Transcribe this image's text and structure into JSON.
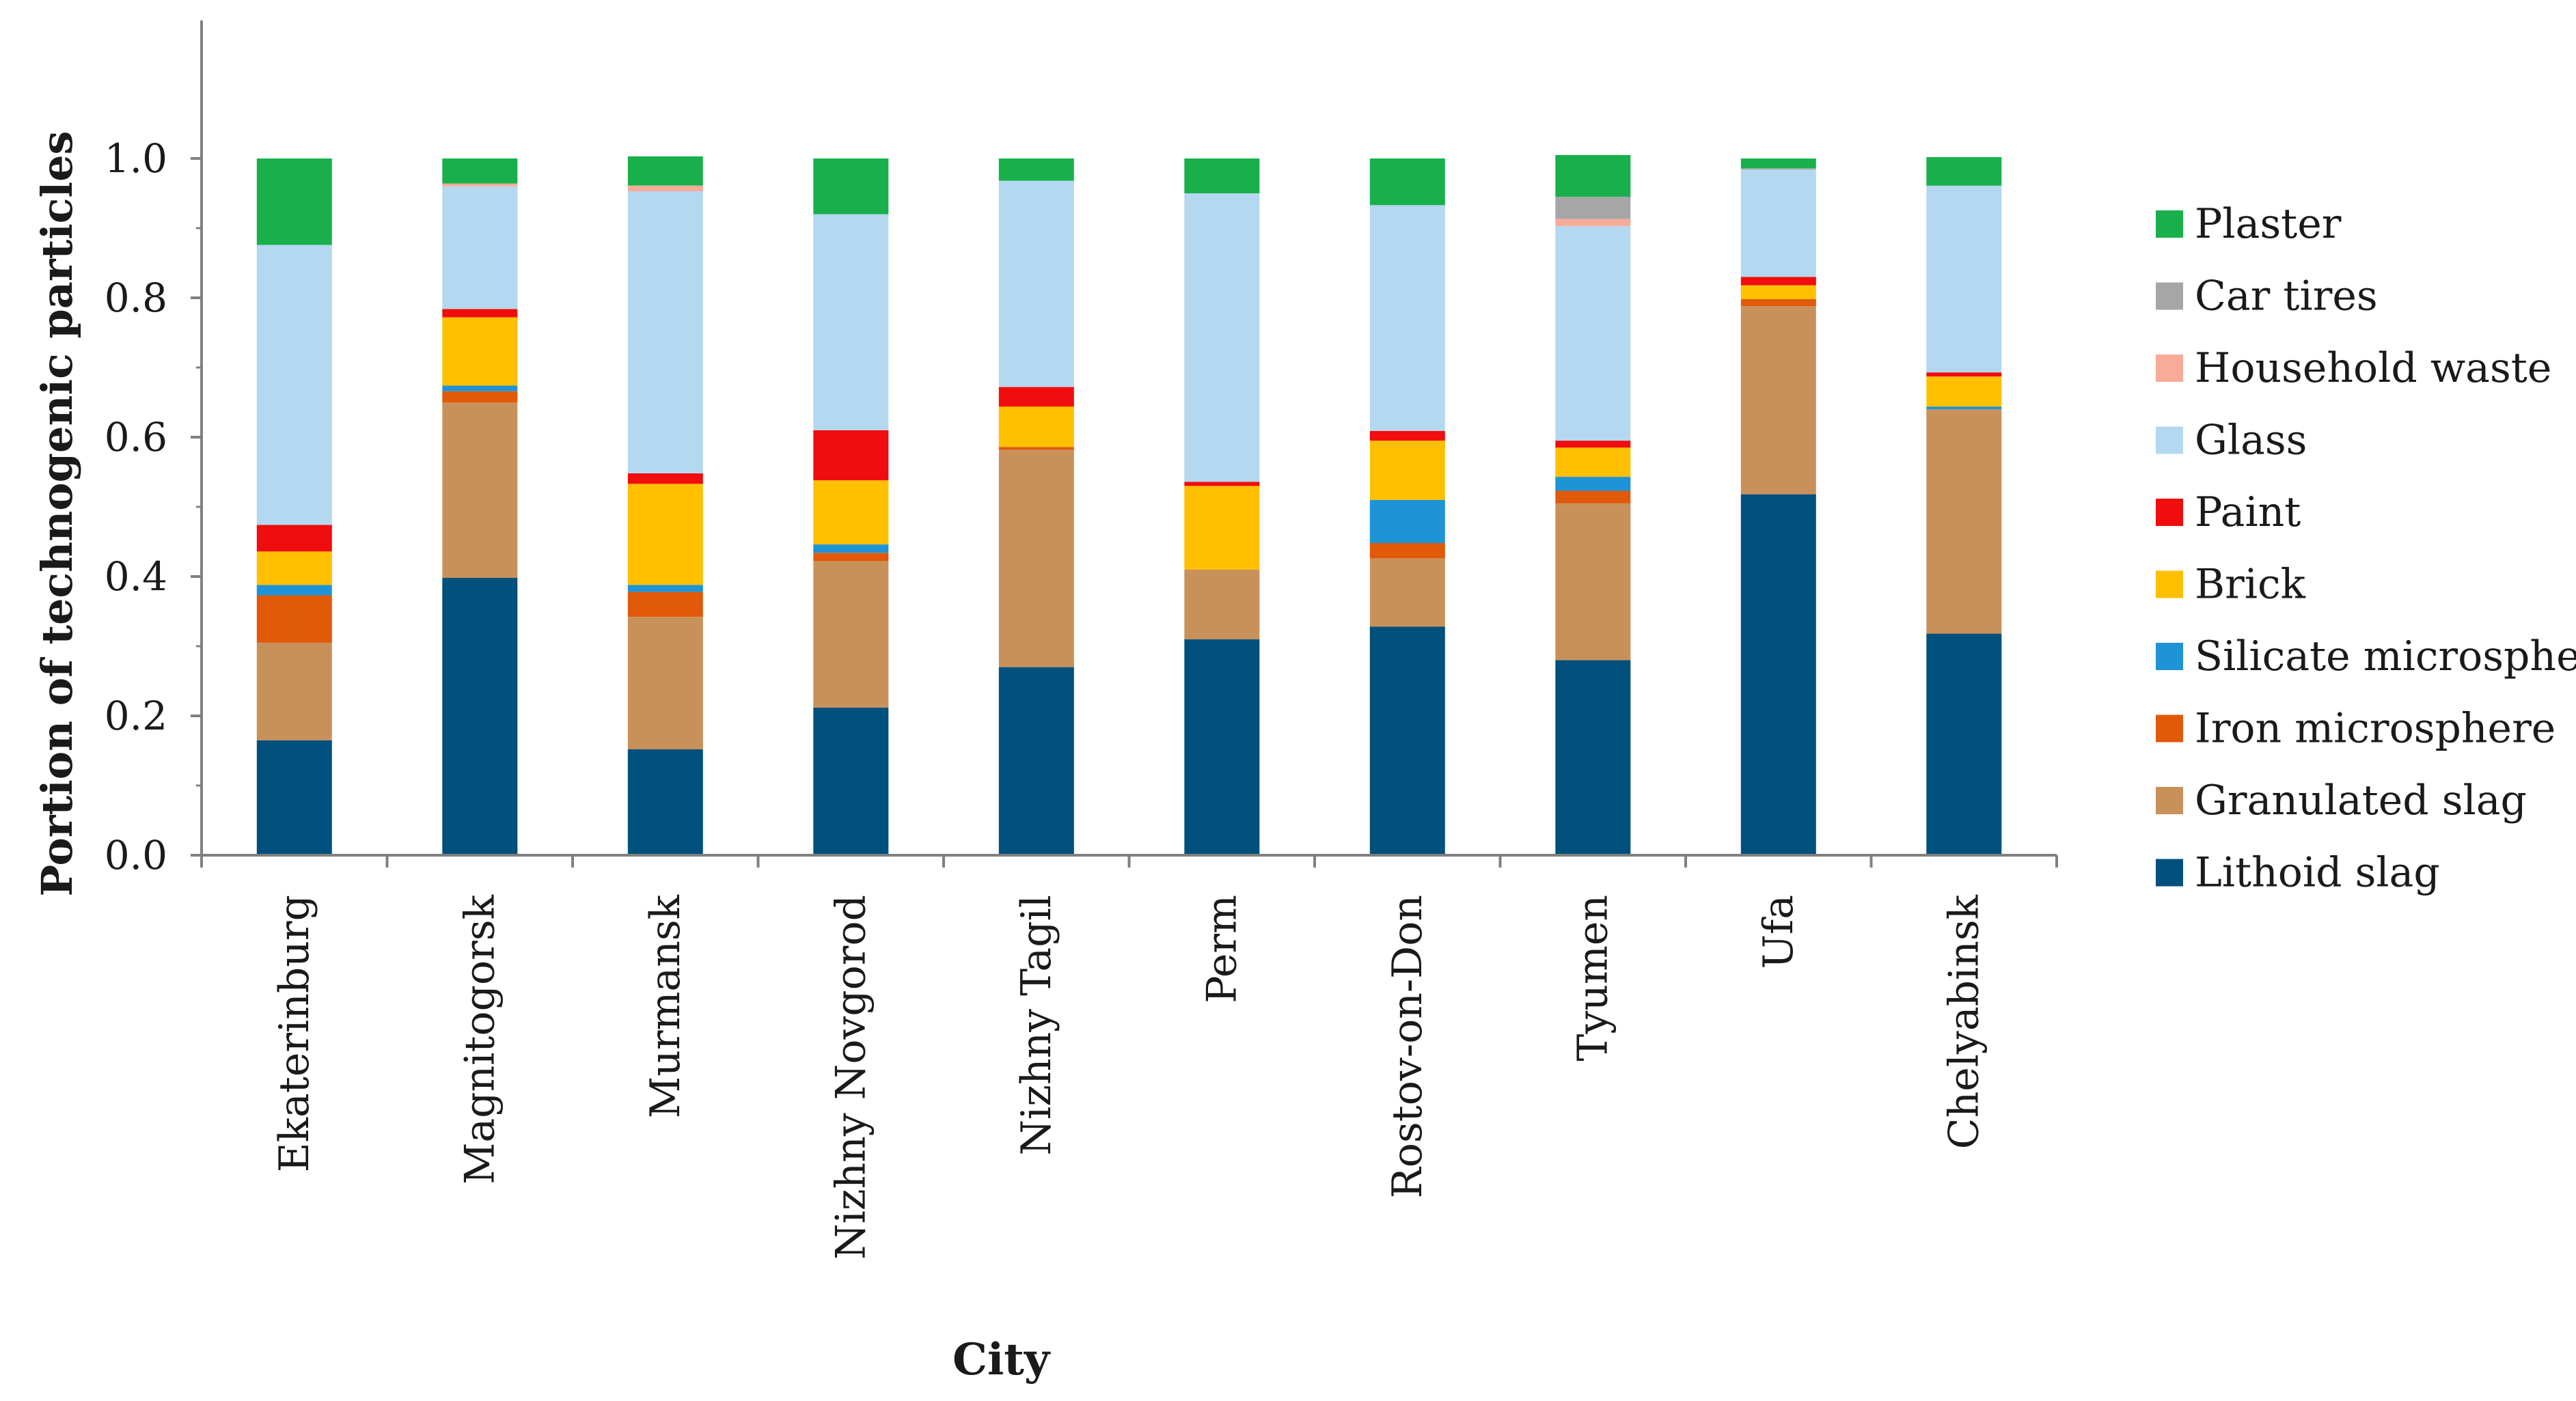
{
  "chart_data": {
    "type": "bar",
    "stacked": true,
    "title": "",
    "xlabel": "City",
    "ylabel": "Portion of technogenic particles",
    "ylim": [
      0,
      1.0
    ],
    "yticks": [
      "0.0",
      "0.2",
      "0.4",
      "0.6",
      "0.8",
      "1.0"
    ],
    "grid": false,
    "legend_position": "right",
    "categories": [
      "Ekaterinburg",
      "Magnitogorsk",
      "Murmansk",
      "Nizhny Novgorod",
      "Nizhny Tagil",
      "Perm",
      "Rostov-on-Don",
      "Tyumen",
      "Ufa",
      "Chelyabinsk"
    ],
    "series": [
      {
        "name": "Lithoid slag",
        "color": "#00507d",
        "values": [
          0.165,
          0.398,
          0.152,
          0.212,
          0.27,
          0.31,
          0.328,
          0.28,
          0.518,
          0.318
        ]
      },
      {
        "name": "Granulated slag",
        "color": "#c9915a",
        "values": [
          0.14,
          0.252,
          0.19,
          0.21,
          0.312,
          0.1,
          0.098,
          0.225,
          0.27,
          0.322
        ]
      },
      {
        "name": "Iron microsphere",
        "color": "#e05a0a",
        "values": [
          0.068,
          0.016,
          0.036,
          0.012,
          0.004,
          0.0,
          0.022,
          0.018,
          0.01,
          0.0
        ]
      },
      {
        "name": "Silicate microsphere",
        "color": "#1e93d6",
        "values": [
          0.015,
          0.008,
          0.01,
          0.012,
          0.0,
          0.0,
          0.062,
          0.02,
          0.0,
          0.004
        ]
      },
      {
        "name": "Brick",
        "color": "#fec000",
        "values": [
          0.048,
          0.098,
          0.145,
          0.092,
          0.058,
          0.12,
          0.085,
          0.042,
          0.02,
          0.043
        ]
      },
      {
        "name": "Paint",
        "color": "#f00d0d",
        "values": [
          0.038,
          0.012,
          0.015,
          0.072,
          0.028,
          0.006,
          0.014,
          0.01,
          0.012,
          0.006
        ]
      },
      {
        "name": "Glass",
        "color": "#b4d8f0",
        "values": [
          0.402,
          0.176,
          0.405,
          0.31,
          0.296,
          0.414,
          0.324,
          0.308,
          0.154,
          0.268
        ]
      },
      {
        "name": "Household waste",
        "color": "#f8ab98",
        "values": [
          0.0,
          0.004,
          0.008,
          0.0,
          0.0,
          0.0,
          0.0,
          0.01,
          0.0,
          0.0
        ]
      },
      {
        "name": "Car tires",
        "color": "#a6a6a6",
        "values": [
          0.0,
          0.0,
          0.0,
          0.0,
          0.0,
          0.0,
          0.0,
          0.032,
          0.002,
          0.0
        ]
      },
      {
        "name": "Plaster",
        "color": "#19b04c",
        "values": [
          0.124,
          0.036,
          0.042,
          0.08,
          0.032,
          0.05,
          0.067,
          0.06,
          0.014,
          0.041
        ]
      }
    ]
  }
}
